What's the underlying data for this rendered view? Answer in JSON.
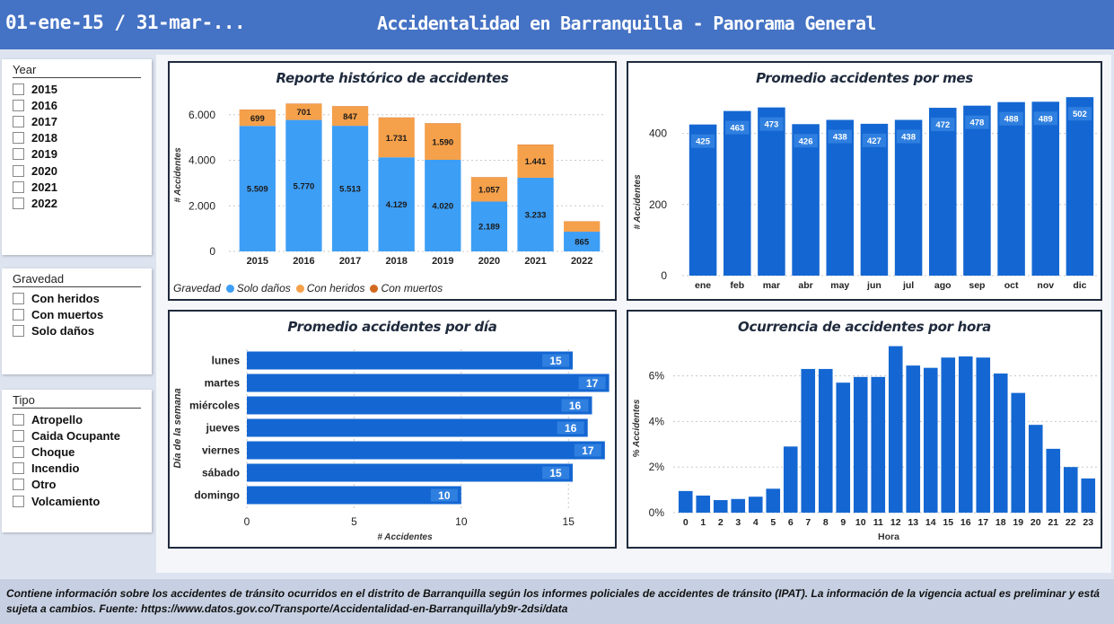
{
  "header": {
    "date_range": "01-ene-15 / 31-mar-...",
    "title": "Accidentalidad en Barranquilla - Panorama General"
  },
  "slicers": {
    "year": {
      "title": "Year",
      "items": [
        "2015",
        "2016",
        "2017",
        "2018",
        "2019",
        "2020",
        "2021",
        "2022"
      ]
    },
    "gravedad": {
      "title": "Gravedad",
      "items": [
        "Con heridos",
        "Con muertos",
        "Solo daños"
      ]
    },
    "tipo": {
      "title": "Tipo",
      "items": [
        "Atropello",
        "Caida Ocupante",
        "Choque",
        "Incendio",
        "Otro",
        "Volcamiento"
      ]
    }
  },
  "legend": {
    "title": "Gravedad",
    "items": [
      {
        "label": "Solo daños",
        "color": "#3d9ef5"
      },
      {
        "label": "Con heridos",
        "color": "#f5a04a"
      },
      {
        "label": "Con muertos",
        "color": "#d2691e"
      }
    ]
  },
  "footer": {
    "text": "Contiene información sobre los accidentes de tránsito ocurridos en el distrito de Barranquilla según los informes policiales de accidentes de tránsito (IPAT). La información de la vigencia actual es preliminar y está sujeta a cambios. Fuente: https://www.datos.gov.co/Transporte/Accidentalidad-en-Barranquilla/yb9r-2dsi/data"
  },
  "chart_data": [
    {
      "id": "historico",
      "type": "bar",
      "stacked": true,
      "title": "Reporte histórico de accidentes",
      "ylabel": "# Accidentes",
      "xlabel": "",
      "categories": [
        "2015",
        "2016",
        "2017",
        "2018",
        "2019",
        "2020",
        "2021",
        "2022"
      ],
      "series": [
        {
          "name": "Solo daños",
          "color": "#3d9ef5",
          "values": [
            5509,
            5770,
            5513,
            4129,
            4020,
            2189,
            3233,
            865
          ],
          "labels": [
            "5.509",
            "5.770",
            "5.513",
            "4.129",
            "4.020",
            "2.189",
            "3.233",
            "865"
          ]
        },
        {
          "name": "Con heridos",
          "color": "#f5a04a",
          "values": [
            699,
            701,
            847,
            1731,
            1590,
            1057,
            1441,
            455
          ],
          "labels": [
            "699",
            "701",
            "847",
            "1.731",
            "1.590",
            "1.057",
            "1.441",
            ""
          ]
        },
        {
          "name": "Con muertos",
          "color": "#d2691e",
          "values": [
            15,
            18,
            17,
            20,
            18,
            15,
            18,
            5
          ],
          "labels": [
            "",
            "",
            "",
            "",
            "",
            "",
            "",
            ""
          ]
        }
      ],
      "ylim": [
        0,
        6700
      ],
      "yticks": [
        0,
        2000,
        4000,
        6000
      ],
      "ytick_labels": [
        "0",
        "2.000",
        "4.000",
        "6.000"
      ],
      "grid": true
    },
    {
      "id": "mes",
      "type": "bar",
      "title": "Promedio accidentes por mes",
      "ylabel": "# Accidentes",
      "xlabel": "",
      "categories": [
        "ene",
        "feb",
        "mar",
        "abr",
        "may",
        "jun",
        "jul",
        "ago",
        "sep",
        "oct",
        "nov",
        "dic"
      ],
      "values": [
        425,
        463,
        473,
        426,
        438,
        427,
        438,
        472,
        478,
        488,
        489,
        502
      ],
      "color": "#1467d2",
      "ylim": [
        0,
        510
      ],
      "yticks": [
        0,
        200,
        400
      ],
      "ytick_labels": [
        "0",
        "200",
        "400"
      ],
      "grid": true
    },
    {
      "id": "dia",
      "type": "bar",
      "orientation": "horizontal",
      "title": "Promedio accidentes por día",
      "ylabel": "Día de la semana",
      "xlabel": "# Accidentes",
      "categories": [
        "lunes",
        "martes",
        "miércoles",
        "jueves",
        "viernes",
        "sábado",
        "domingo"
      ],
      "values": [
        15.2,
        16.9,
        16.1,
        15.9,
        16.7,
        15.2,
        10.0
      ],
      "labels": [
        "15",
        "17",
        "16",
        "16",
        "17",
        "15",
        "10"
      ],
      "color": "#1467d2",
      "xlim": [
        0,
        17
      ],
      "xticks": [
        0,
        5,
        10,
        15
      ],
      "grid": true
    },
    {
      "id": "hora",
      "type": "bar",
      "title": "Ocurrencia de accidentes por hora",
      "ylabel": "% Accidentes",
      "xlabel": "Hora",
      "categories": [
        "0",
        "1",
        "2",
        "3",
        "4",
        "5",
        "6",
        "7",
        "8",
        "9",
        "10",
        "11",
        "12",
        "13",
        "14",
        "15",
        "16",
        "17",
        "18",
        "19",
        "20",
        "21",
        "22",
        "23"
      ],
      "values": [
        0.95,
        0.75,
        0.55,
        0.6,
        0.7,
        1.05,
        2.9,
        6.3,
        6.3,
        5.7,
        5.95,
        5.95,
        7.3,
        6.45,
        6.35,
        6.8,
        6.85,
        6.8,
        6.1,
        5.25,
        3.85,
        2.8,
        2.0,
        1.5
      ],
      "color": "#1467d2",
      "ylim": [
        0,
        7.4
      ],
      "yticks": [
        0,
        2,
        4,
        6
      ],
      "ytick_labels": [
        "0%",
        "2%",
        "4%",
        "6%"
      ],
      "grid": true
    }
  ]
}
